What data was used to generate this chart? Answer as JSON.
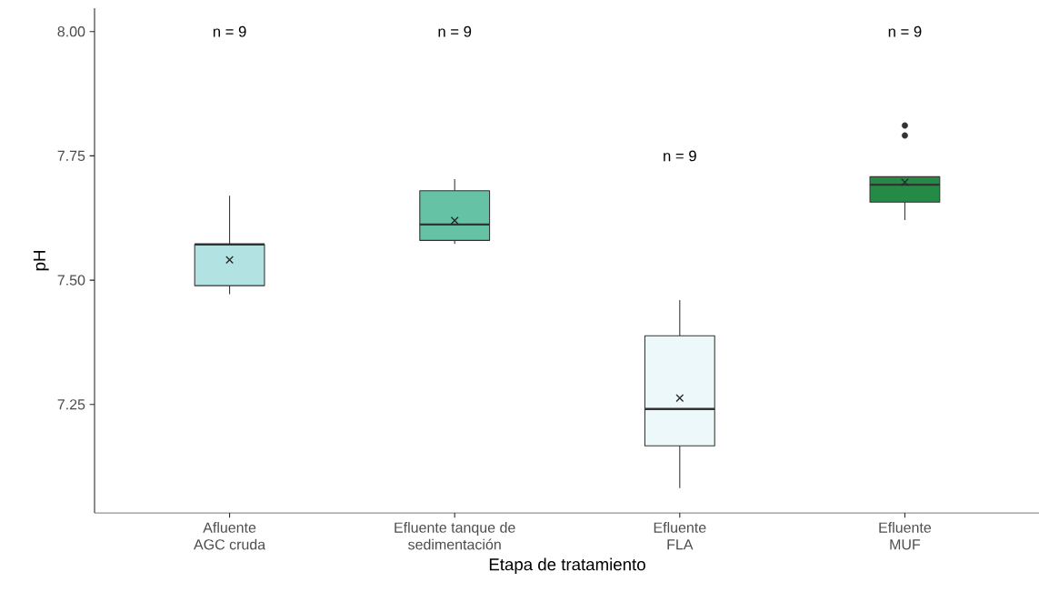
{
  "chart_data": {
    "type": "box",
    "xlabel": "Etapa de tratamiento",
    "ylabel": "pH",
    "categories": [
      "Afluente\nAGC cruda",
      "Efluente tanque de\nsedimentación",
      "Efluente\nFLA",
      "Efluente\nMUF"
    ],
    "colors": [
      "#b2e2e2",
      "#66c2a4",
      "#edf8fb",
      "#238b45"
    ],
    "boxes": [
      {
        "low": 7.472,
        "q1": 7.489,
        "median": 7.572,
        "q3": 7.572,
        "high": 7.67,
        "mean": 7.541
      },
      {
        "low": 7.573,
        "q1": 7.58,
        "median": 7.612,
        "q3": 7.68,
        "high": 7.703,
        "mean": 7.62
      },
      {
        "low": 7.082,
        "q1": 7.167,
        "median": 7.241,
        "q3": 7.388,
        "high": 7.46,
        "mean": 7.263
      },
      {
        "low": 7.621,
        "q1": 7.657,
        "median": 7.692,
        "q3": 7.708,
        "high": 7.708,
        "mean": 7.697,
        "outliers": [
          7.811,
          7.791
        ]
      }
    ],
    "ylim": [
      7.032,
      8.047
    ],
    "yticks": [
      {
        "value": 7.25,
        "label": "7.25"
      },
      {
        "value": 7.5,
        "label": "7.50"
      },
      {
        "value": 7.75,
        "label": "7.75"
      },
      {
        "value": 8.0,
        "label": "8.00"
      }
    ],
    "grid": false,
    "annotations": [
      "n = 9",
      "n = 9",
      "n = 9",
      "n = 9"
    ]
  }
}
